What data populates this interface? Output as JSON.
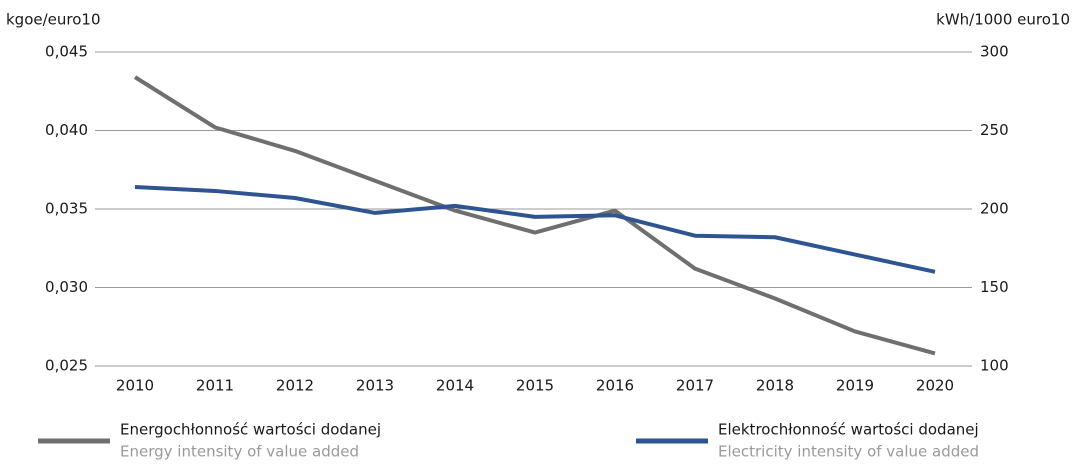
{
  "chart_data": {
    "type": "line",
    "y_label": "kgoe/euro10",
    "y2_label": "kWh/1000 euro10",
    "categories": [
      "2010",
      "2011",
      "2012",
      "2013",
      "2014",
      "2015",
      "2016",
      "2017",
      "2018",
      "2019",
      "2020"
    ],
    "series": [
      {
        "name": "Energochłonność wartości dodanej",
        "name_en": "Energy intensity of value added",
        "color": "#6f6f6f",
        "values": [
          0.0434,
          0.0402,
          0.0387,
          0.0368,
          0.0349,
          0.0335,
          0.0349,
          0.0312,
          0.0293,
          0.0272,
          0.0258
        ]
      },
      {
        "name": "Elektrochłonność wartości dodanej",
        "name_en": "Electricity intensity of value added",
        "color": "#2e5492",
        "axis": "y2",
        "values": [
          214,
          211.5,
          207,
          197.5,
          202,
          195,
          196,
          183,
          182,
          171,
          160
        ]
      }
    ],
    "ylim": [
      0.025,
      0.045
    ],
    "yticks": [
      {
        "value": 0.025,
        "label": "0,025"
      },
      {
        "value": 0.03,
        "label": "0,030"
      },
      {
        "value": 0.035,
        "label": "0,035"
      },
      {
        "value": 0.04,
        "label": "0,040"
      },
      {
        "value": 0.045,
        "label": "0,045"
      }
    ],
    "y2lim": [
      100,
      300
    ],
    "y2ticks": [
      100,
      150,
      200,
      250,
      300
    ],
    "grid": true
  }
}
